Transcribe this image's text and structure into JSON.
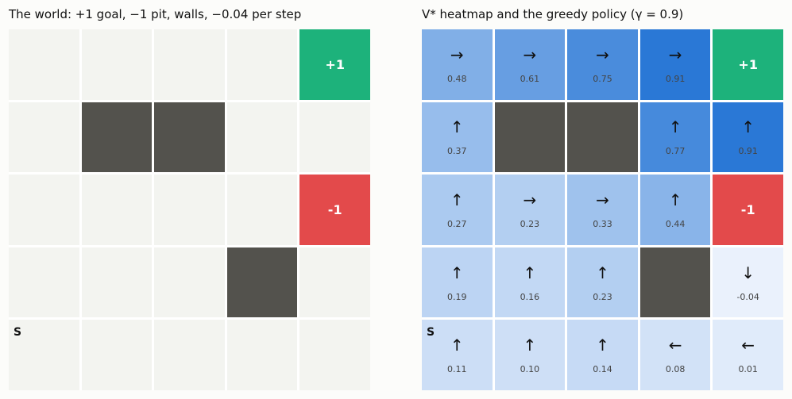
{
  "left_panel": {
    "title": "The world: +1 goal, −1 pit, walls, −0.04 per step"
  },
  "right_panel": {
    "title": "V* heatmap and the greedy policy (γ = 0.9)"
  },
  "colors": {
    "goal": "#1db27b",
    "pit": "#e34a4b",
    "wall": "#53524d",
    "empty": "#f3f4f0",
    "heat_low": "#eaf1fc",
    "heat_high": "#2a78d6"
  },
  "labels": {
    "goal": "+1",
    "pit": "-1",
    "start": "S"
  },
  "grid": {
    "rows": [
      [
        {
          "type": "empty",
          "arrow": "→",
          "value": "0.48",
          "v": 0.48
        },
        {
          "type": "empty",
          "arrow": "→",
          "value": "0.61",
          "v": 0.61
        },
        {
          "type": "empty",
          "arrow": "→",
          "value": "0.75",
          "v": 0.75
        },
        {
          "type": "empty",
          "arrow": "→",
          "value": "0.91",
          "v": 0.91
        },
        {
          "type": "goal"
        }
      ],
      [
        {
          "type": "empty",
          "arrow": "↑",
          "value": "0.37",
          "v": 0.37
        },
        {
          "type": "wall"
        },
        {
          "type": "wall"
        },
        {
          "type": "empty",
          "arrow": "↑",
          "value": "0.77",
          "v": 0.77
        },
        {
          "type": "empty",
          "arrow": "↑",
          "value": "0.91",
          "v": 0.91
        }
      ],
      [
        {
          "type": "empty",
          "arrow": "↑",
          "value": "0.27",
          "v": 0.27
        },
        {
          "type": "empty",
          "arrow": "→",
          "value": "0.23",
          "v": 0.23
        },
        {
          "type": "empty",
          "arrow": "→",
          "value": "0.33",
          "v": 0.33
        },
        {
          "type": "empty",
          "arrow": "↑",
          "value": "0.44",
          "v": 0.44
        },
        {
          "type": "pit"
        }
      ],
      [
        {
          "type": "empty",
          "arrow": "↑",
          "value": "0.19",
          "v": 0.19
        },
        {
          "type": "empty",
          "arrow": "↑",
          "value": "0.16",
          "v": 0.16
        },
        {
          "type": "empty",
          "arrow": "↑",
          "value": "0.23",
          "v": 0.23
        },
        {
          "type": "wall"
        },
        {
          "type": "empty",
          "arrow": "↓",
          "value": "-0.04",
          "v": -0.04
        }
      ],
      [
        {
          "type": "start",
          "arrow": "↑",
          "value": "0.11",
          "v": 0.11
        },
        {
          "type": "empty",
          "arrow": "↑",
          "value": "0.10",
          "v": 0.1
        },
        {
          "type": "empty",
          "arrow": "↑",
          "value": "0.14",
          "v": 0.14
        },
        {
          "type": "empty",
          "arrow": "←",
          "value": "0.08",
          "v": 0.08
        },
        {
          "type": "empty",
          "arrow": "←",
          "value": "0.01",
          "v": 0.01
        }
      ]
    ]
  }
}
